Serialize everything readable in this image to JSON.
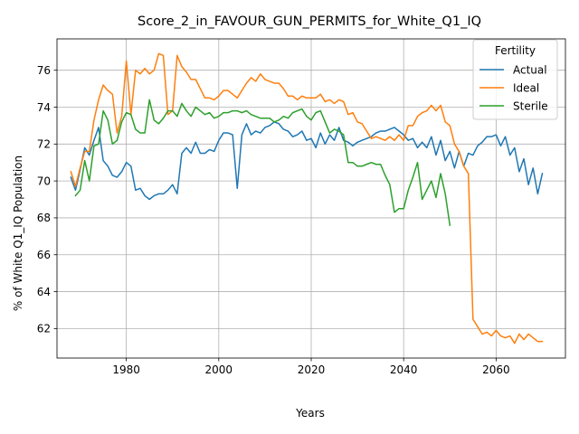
{
  "chart_data": {
    "type": "line",
    "title": "Score_2_in_FAVOUR_GUN_PERMITS_for_White_Q1_IQ",
    "xlabel": "Years",
    "ylabel": "% of White Q1_IQ Population",
    "xlim": [
      1965,
      2075
    ],
    "ylim": [
      60.4,
      77.7
    ],
    "xticks": [
      1980,
      2000,
      2020,
      2040,
      2060
    ],
    "yticks": [
      62,
      64,
      66,
      68,
      70,
      72,
      74,
      76
    ],
    "grid": true,
    "legend": {
      "title": "Fertility",
      "position": "top-right"
    },
    "series": [
      {
        "name": "Actual",
        "color": "#1f77b4",
        "x": [
          1968,
          1969,
          1970,
          1971,
          1972,
          1973,
          1974,
          1975,
          1976,
          1977,
          1978,
          1979,
          1980,
          1981,
          1982,
          1983,
          1984,
          1985,
          1986,
          1987,
          1988,
          1989,
          1990,
          1991,
          1992,
          1993,
          1994,
          1995,
          1996,
          1997,
          1998,
          1999,
          2000,
          2001,
          2002,
          2003,
          2004,
          2005,
          2006,
          2007,
          2008,
          2009,
          2010,
          2011,
          2012,
          2013,
          2014,
          2015,
          2016,
          2017,
          2018,
          2019,
          2020,
          2021,
          2022,
          2023,
          2024,
          2025,
          2026,
          2027,
          2028,
          2029,
          2030,
          2031,
          2032,
          2033,
          2034,
          2035,
          2036,
          2037,
          2038,
          2039,
          2040,
          2041,
          2042,
          2043,
          2044,
          2045,
          2046,
          2047,
          2048,
          2049,
          2050,
          2051,
          2052,
          2053,
          2054,
          2055,
          2056,
          2057,
          2058,
          2059,
          2060,
          2061,
          2062,
          2063,
          2064,
          2065,
          2066,
          2067,
          2068,
          2069,
          2070
        ],
        "y": [
          70.2,
          69.5,
          70.6,
          71.8,
          71.4,
          72.2,
          72.9,
          71.1,
          70.8,
          70.3,
          70.2,
          70.5,
          71.0,
          70.8,
          69.5,
          69.6,
          69.2,
          69.0,
          69.2,
          69.3,
          69.3,
          69.5,
          69.8,
          69.3,
          71.5,
          71.8,
          71.5,
          72.1,
          71.5,
          71.5,
          71.7,
          71.6,
          72.2,
          72.6,
          72.6,
          72.5,
          69.6,
          72.5,
          73.1,
          72.5,
          72.7,
          72.6,
          72.9,
          73.0,
          73.2,
          73.1,
          72.8,
          72.7,
          72.4,
          72.5,
          72.7,
          72.2,
          72.3,
          71.8,
          72.6,
          72.0,
          72.5,
          72.2,
          72.9,
          72.2,
          72.1,
          71.9,
          72.1,
          72.2,
          72.3,
          72.4,
          72.6,
          72.7,
          72.7,
          72.8,
          72.9,
          72.7,
          72.5,
          72.2,
          72.3,
          71.8,
          72.1,
          71.8,
          72.4,
          71.4,
          72.2,
          71.1,
          71.6,
          70.7,
          71.6,
          70.8,
          71.5,
          71.4,
          71.9,
          72.1,
          72.4,
          72.4,
          72.5,
          71.9,
          72.4,
          71.4,
          71.8,
          70.5,
          71.2,
          69.8,
          70.7,
          69.3,
          70.4
        ]
      },
      {
        "name": "Ideal",
        "color": "#ff7f0e",
        "x": [
          1968,
          1969,
          1970,
          1971,
          1972,
          1973,
          1974,
          1975,
          1976,
          1977,
          1978,
          1979,
          1980,
          1981,
          1982,
          1983,
          1984,
          1985,
          1986,
          1987,
          1988,
          1989,
          1990,
          1991,
          1992,
          1993,
          1994,
          1995,
          1996,
          1997,
          1998,
          1999,
          2000,
          2001,
          2002,
          2003,
          2004,
          2005,
          2006,
          2007,
          2008,
          2009,
          2010,
          2011,
          2012,
          2013,
          2014,
          2015,
          2016,
          2017,
          2018,
          2019,
          2020,
          2021,
          2022,
          2023,
          2024,
          2025,
          2026,
          2027,
          2028,
          2029,
          2030,
          2031,
          2032,
          2033,
          2034,
          2035,
          2036,
          2037,
          2038,
          2039,
          2040,
          2041,
          2042,
          2043,
          2044,
          2045,
          2046,
          2047,
          2048,
          2049,
          2050,
          2051,
          2052,
          2053,
          2054,
          2055,
          2056,
          2057,
          2058,
          2059,
          2060,
          2061,
          2062,
          2063,
          2064,
          2065,
          2066,
          2067,
          2068,
          2069,
          2070
        ],
        "y": [
          70.5,
          69.7,
          70.7,
          71.6,
          71.6,
          73.3,
          74.4,
          75.2,
          74.9,
          74.7,
          72.6,
          73.5,
          76.5,
          73.6,
          76.0,
          75.8,
          76.1,
          75.8,
          76.0,
          76.9,
          76.8,
          73.6,
          73.8,
          76.8,
          76.2,
          75.9,
          75.5,
          75.5,
          75.0,
          74.5,
          74.5,
          74.4,
          74.6,
          74.9,
          74.9,
          74.7,
          74.5,
          74.9,
          75.3,
          75.6,
          75.4,
          75.8,
          75.5,
          75.4,
          75.3,
          75.3,
          75.0,
          74.6,
          74.6,
          74.4,
          74.6,
          74.5,
          74.5,
          74.5,
          74.7,
          74.3,
          74.4,
          74.2,
          74.4,
          74.3,
          73.6,
          73.7,
          73.2,
          73.1,
          72.7,
          72.3,
          72.4,
          72.3,
          72.2,
          72.4,
          72.2,
          72.5,
          72.2,
          73.0,
          73.0,
          73.5,
          73.7,
          73.8,
          74.1,
          73.8,
          74.1,
          73.2,
          73.0,
          72.0,
          71.6,
          70.8,
          70.4,
          62.5,
          62.1,
          61.7,
          61.8,
          61.6,
          61.9,
          61.6,
          61.5,
          61.6,
          61.2,
          61.7,
          61.4,
          61.7,
          61.5,
          61.3,
          61.3
        ]
      },
      {
        "name": "Sterile",
        "color": "#2ca02c",
        "x": [
          1969,
          1970,
          1971,
          1972,
          1973,
          1974,
          1975,
          1976,
          1977,
          1978,
          1979,
          1980,
          1981,
          1982,
          1983,
          1984,
          1985,
          1986,
          1987,
          1988,
          1989,
          1990,
          1991,
          1992,
          1993,
          1994,
          1995,
          1996,
          1997,
          1998,
          1999,
          2000,
          2001,
          2002,
          2003,
          2004,
          2005,
          2006,
          2007,
          2008,
          2009,
          2010,
          2011,
          2012,
          2013,
          2014,
          2015,
          2016,
          2017,
          2018,
          2019,
          2020,
          2021,
          2022,
          2023,
          2024,
          2025,
          2026,
          2027,
          2028,
          2029,
          2030,
          2031,
          2032,
          2033,
          2034,
          2035,
          2036,
          2037,
          2038,
          2039,
          2040,
          2041,
          2042,
          2043,
          2044,
          2045,
          2046,
          2047,
          2048,
          2049,
          2050
        ],
        "y": [
          69.2,
          69.5,
          71.1,
          70.0,
          71.9,
          72.0,
          73.8,
          73.3,
          72.0,
          72.2,
          73.2,
          73.7,
          73.6,
          72.8,
          72.6,
          72.6,
          74.4,
          73.3,
          73.1,
          73.4,
          73.8,
          73.8,
          73.5,
          74.2,
          73.8,
          73.5,
          74.0,
          73.8,
          73.6,
          73.7,
          73.4,
          73.5,
          73.7,
          73.7,
          73.8,
          73.8,
          73.7,
          73.8,
          73.6,
          73.5,
          73.4,
          73.4,
          73.4,
          73.2,
          73.3,
          73.5,
          73.4,
          73.7,
          73.8,
          73.9,
          73.5,
          73.3,
          73.7,
          73.8,
          73.2,
          72.6,
          72.8,
          72.7,
          72.5,
          71.0,
          71.0,
          70.8,
          70.8,
          70.9,
          71.0,
          70.9,
          70.9,
          70.3,
          69.8,
          68.3,
          68.5,
          68.5,
          69.5,
          70.2,
          71.0,
          69.0,
          69.5,
          70.0,
          69.1,
          70.4,
          69.3,
          67.6
        ]
      }
    ]
  }
}
